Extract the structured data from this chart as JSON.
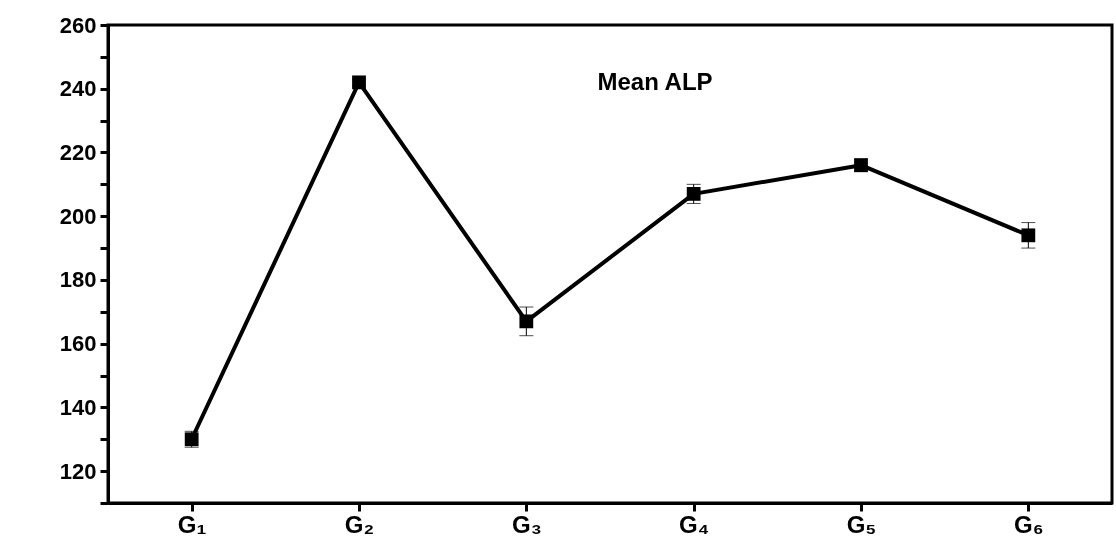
{
  "chart_data": {
    "type": "line",
    "annotations": [
      "Mean ALP"
    ],
    "categories": [
      "G₁",
      "G₂",
      "G₃",
      "G₄",
      "G₅",
      "G₆"
    ],
    "series": [
      {
        "color": "#000000",
        "values": [
          130,
          242,
          167,
          207,
          216,
          194
        ],
        "errors": [
          2.5,
          1,
          4.5,
          3,
          2,
          4
        ]
      }
    ],
    "ylim": [
      110,
      260
    ],
    "yticks": [
      {
        "value": 110,
        "label": null
      },
      120,
      {
        "value": 130,
        "label": null
      },
      140,
      {
        "value": 150,
        "label": null
      },
      160,
      {
        "value": 170,
        "label": null
      },
      180,
      {
        "value": 190,
        "label": null
      },
      200,
      {
        "value": 210,
        "label": null
      },
      220,
      {
        "value": 230,
        "label": null
      },
      240,
      {
        "value": 250,
        "label": null
      },
      260
    ],
    "grid": false,
    "marker": "square",
    "line_style": "solid"
  }
}
